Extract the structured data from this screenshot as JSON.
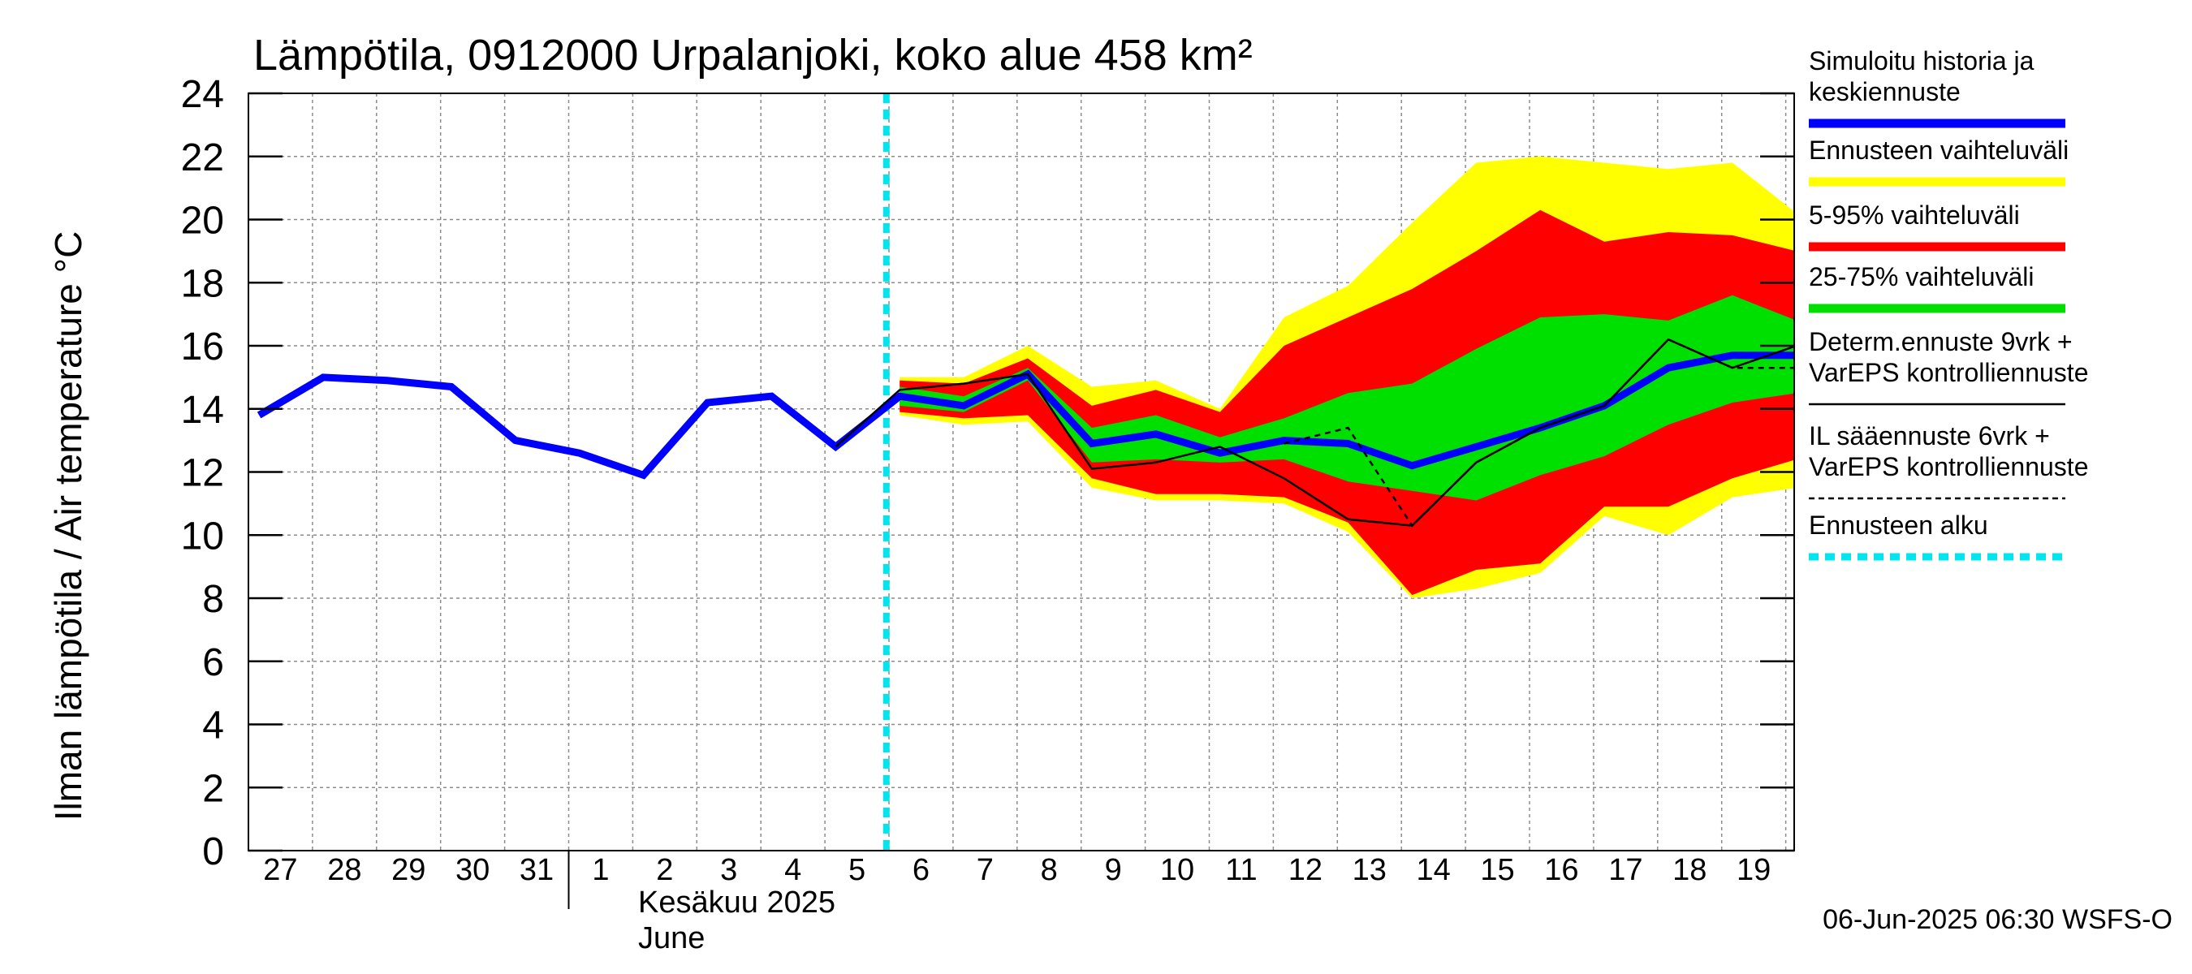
{
  "chart_data": {
    "type": "area",
    "title": "Lämpötila, 0912000 Urpalanjoki, koko alue 458 km²",
    "ylabel": "Ilman lämpötila / Air temperature   °C",
    "ylim": [
      0,
      24
    ],
    "yticks": [
      "0",
      "2",
      "4",
      "6",
      "8",
      "10",
      "12",
      "14",
      "16",
      "18",
      "20",
      "22",
      "24"
    ],
    "x_tick_labels": [
      "27",
      "28",
      "29",
      "30",
      "31",
      "1",
      "2",
      "3",
      "4",
      "5",
      "6",
      "7",
      "8",
      "9",
      "10",
      "11",
      "12",
      "13",
      "14",
      "15",
      "16",
      "17",
      "18",
      "19"
    ],
    "month_label_fi": "Kesäkuu  2025",
    "month_label_en": "June",
    "grid": true,
    "legend_position": "right",
    "forecast_start": "2025-06-05 19:00",
    "footer": "06-Jun-2025 06:30 WSFS-O",
    "legend": [
      {
        "label": "Simuloitu historia ja keskiennuste",
        "color": "#0000ff",
        "style": "thick"
      },
      {
        "label": "Ennusteen vaihteluväli",
        "color": "#ffff00",
        "style": "thick"
      },
      {
        "label": "5-95% vaihteluväli",
        "color": "#ff0000",
        "style": "thick"
      },
      {
        "label": "25-75% vaihteluväli",
        "color": "#00e000",
        "style": "thick"
      },
      {
        "label": "Determ.ennuste 9vrk + VarEPS kontrolliennuste",
        "color": "#000000",
        "style": "thin"
      },
      {
        "label": "IL sääennuste 6vrk  + VarEPS kontrolliennuste",
        "color": "#000000",
        "style": "dashed"
      },
      {
        "label": "Ennusteen alku",
        "color": "#00e5ee",
        "style": "dotted"
      }
    ],
    "series": [
      {
        "name": "Simuloitu historia ja keskiennuste",
        "points": [
          [
            "2025-05-27 00:00",
            13.8
          ],
          [
            "2025-05-28 00:00",
            15.0
          ],
          [
            "2025-05-29 00:00",
            14.9
          ],
          [
            "2025-05-30 00:00",
            14.7
          ],
          [
            "2025-05-31 00:00",
            13.0
          ],
          [
            "2025-06-01 00:00",
            12.6
          ],
          [
            "2025-06-02 00:00",
            11.9
          ],
          [
            "2025-06-03 00:00",
            14.2
          ],
          [
            "2025-06-04 00:00",
            14.4
          ],
          [
            "2025-06-05 00:00",
            12.8
          ],
          [
            "2025-06-06 00:00",
            14.4
          ],
          [
            "2025-06-07 00:00",
            14.1
          ],
          [
            "2025-06-08 00:00",
            15.1
          ],
          [
            "2025-06-09 00:00",
            12.9
          ],
          [
            "2025-06-10 00:00",
            13.2
          ],
          [
            "2025-06-11 00:00",
            12.6
          ],
          [
            "2025-06-12 00:00",
            13.0
          ],
          [
            "2025-06-13 00:00",
            12.9
          ],
          [
            "2025-06-14 00:00",
            12.2
          ],
          [
            "2025-06-15 00:00",
            12.8
          ],
          [
            "2025-06-16 00:00",
            13.4
          ],
          [
            "2025-06-17 00:00",
            14.1
          ],
          [
            "2025-06-18 00:00",
            15.3
          ],
          [
            "2025-06-19 00:00",
            15.7
          ],
          [
            "2025-06-20 00:00",
            15.7
          ]
        ]
      },
      {
        "name": "Determ.ennuste 9vrk + VarEPS kontrolliennuste",
        "points": [
          [
            "2025-06-05 00:00",
            12.8
          ],
          [
            "2025-06-06 00:00",
            14.6
          ],
          [
            "2025-06-07 00:00",
            14.8
          ],
          [
            "2025-06-08 00:00",
            15.1
          ],
          [
            "2025-06-09 00:00",
            12.1
          ],
          [
            "2025-06-10 00:00",
            12.3
          ],
          [
            "2025-06-11 00:00",
            12.8
          ],
          [
            "2025-06-12 00:00",
            11.8
          ],
          [
            "2025-06-13 00:00",
            10.5
          ],
          [
            "2025-06-14 00:00",
            10.3
          ],
          [
            "2025-06-15 00:00",
            12.3
          ],
          [
            "2025-06-16 00:00",
            13.4
          ],
          [
            "2025-06-17 00:00",
            14.1
          ],
          [
            "2025-06-18 00:00",
            16.2
          ],
          [
            "2025-06-19 00:00",
            15.3
          ],
          [
            "2025-06-20 00:00",
            16.0
          ]
        ]
      },
      {
        "name": "IL sääennuste 6vrk  + VarEPS kontrolliennuste",
        "points": [
          [
            "2025-06-12 00:00",
            12.9
          ],
          [
            "2025-06-13 00:00",
            13.4
          ],
          [
            "2025-06-14 00:00",
            10.3
          ],
          [
            "2025-06-15 00:00",
            12.3
          ],
          [
            "2025-06-16 00:00",
            13.4
          ],
          [
            "2025-06-17 00:00",
            14.1
          ],
          [
            "2025-06-18 00:00",
            16.2
          ],
          [
            "2025-06-19 00:00",
            15.3
          ],
          [
            "2025-06-20 00:00",
            15.3
          ]
        ]
      }
    ],
    "bands": [
      {
        "name": "Ennusteen vaihteluväli",
        "x": [
          "2025-06-06 00:00",
          "2025-06-07 00:00",
          "2025-06-08 00:00",
          "2025-06-09 00:00",
          "2025-06-10 00:00",
          "2025-06-11 00:00",
          "2025-06-12 00:00",
          "2025-06-13 00:00",
          "2025-06-14 00:00",
          "2025-06-15 00:00",
          "2025-06-16 00:00",
          "2025-06-17 00:00",
          "2025-06-18 00:00",
          "2025-06-19 00:00",
          "2025-06-20 00:00"
        ],
        "upper": [
          15.0,
          15.0,
          16.0,
          14.7,
          14.9,
          14.0,
          16.9,
          17.9,
          19.9,
          21.8,
          22.0,
          21.8,
          21.6,
          21.8,
          20.2
        ],
        "lower": [
          13.8,
          13.5,
          13.6,
          11.5,
          11.1,
          11.1,
          11.0,
          10.1,
          8.0,
          8.3,
          8.8,
          10.6,
          10.0,
          11.2,
          11.5
        ]
      },
      {
        "name": "5-95% vaihteluväli",
        "x": [
          "2025-06-06 00:00",
          "2025-06-07 00:00",
          "2025-06-08 00:00",
          "2025-06-09 00:00",
          "2025-06-10 00:00",
          "2025-06-11 00:00",
          "2025-06-12 00:00",
          "2025-06-13 00:00",
          "2025-06-14 00:00",
          "2025-06-15 00:00",
          "2025-06-16 00:00",
          "2025-06-17 00:00",
          "2025-06-18 00:00",
          "2025-06-19 00:00",
          "2025-06-20 00:00"
        ],
        "upper": [
          14.9,
          14.8,
          15.6,
          14.1,
          14.6,
          13.9,
          16.0,
          16.9,
          17.8,
          19.0,
          20.3,
          19.3,
          19.6,
          19.5,
          19.0
        ],
        "lower": [
          13.9,
          13.7,
          13.8,
          11.8,
          11.3,
          11.3,
          11.2,
          10.4,
          8.1,
          8.9,
          9.1,
          10.9,
          10.9,
          11.8,
          12.4
        ]
      },
      {
        "name": "25-75% vaihteluväli",
        "x": [
          "2025-06-06 00:00",
          "2025-06-07 00:00",
          "2025-06-08 00:00",
          "2025-06-09 00:00",
          "2025-06-10 00:00",
          "2025-06-11 00:00",
          "2025-06-12 00:00",
          "2025-06-13 00:00",
          "2025-06-14 00:00",
          "2025-06-15 00:00",
          "2025-06-16 00:00",
          "2025-06-17 00:00",
          "2025-06-18 00:00",
          "2025-06-19 00:00",
          "2025-06-20 00:00"
        ],
        "upper": [
          14.7,
          14.4,
          15.3,
          13.4,
          13.8,
          13.1,
          13.7,
          14.5,
          14.8,
          15.9,
          16.9,
          17.0,
          16.8,
          17.6,
          16.8
        ],
        "lower": [
          14.1,
          13.9,
          14.9,
          12.3,
          12.4,
          12.3,
          12.4,
          11.7,
          11.4,
          11.1,
          11.9,
          12.5,
          13.5,
          14.2,
          14.5
        ]
      }
    ]
  }
}
